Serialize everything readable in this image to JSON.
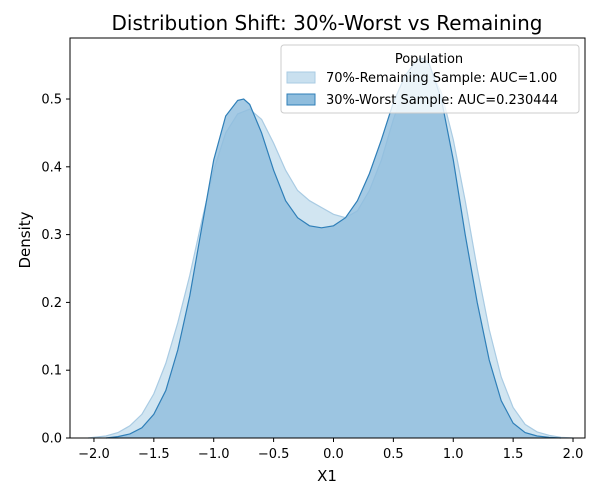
{
  "chart_data": {
    "type": "area",
    "title": "Distribution Shift: 30%-Worst vs Remaining",
    "xlabel": "X1",
    "ylabel": "Density",
    "xlim": [
      -2.2,
      2.1
    ],
    "ylim": [
      0,
      0.59
    ],
    "xticks": [
      -2.0,
      -1.5,
      -1.0,
      -0.5,
      0.0,
      0.5,
      1.0,
      1.5,
      2.0
    ],
    "xtick_labels": [
      "−2.0",
      "−1.5",
      "−1.0",
      "−0.5",
      "0.0",
      "0.5",
      "1.0",
      "1.5",
      "2.0"
    ],
    "yticks": [
      0.0,
      0.1,
      0.2,
      0.3,
      0.4,
      0.5
    ],
    "ytick_labels": [
      "0.0",
      "0.1",
      "0.2",
      "0.3",
      "0.4",
      "0.5"
    ],
    "grid": false,
    "legend": {
      "title": "Population",
      "placement": "top-right"
    },
    "series": [
      {
        "name": "70%-Remaining Sample: AUC=1.00",
        "fill": "#c9e0ef",
        "stroke": "#a9cbe3",
        "x": [
          -2.05,
          -1.9,
          -1.8,
          -1.7,
          -1.6,
          -1.5,
          -1.4,
          -1.3,
          -1.2,
          -1.1,
          -1.0,
          -0.9,
          -0.8,
          -0.7,
          -0.6,
          -0.5,
          -0.4,
          -0.3,
          -0.2,
          -0.1,
          0.0,
          0.1,
          0.2,
          0.3,
          0.4,
          0.5,
          0.6,
          0.7,
          0.8,
          0.9,
          1.0,
          1.1,
          1.2,
          1.3,
          1.4,
          1.5,
          1.6,
          1.7,
          1.8,
          1.9,
          2.0
        ],
        "y": [
          0.0,
          0.003,
          0.008,
          0.018,
          0.035,
          0.065,
          0.11,
          0.17,
          0.24,
          0.32,
          0.395,
          0.45,
          0.478,
          0.485,
          0.47,
          0.435,
          0.395,
          0.365,
          0.35,
          0.34,
          0.33,
          0.325,
          0.335,
          0.365,
          0.41,
          0.47,
          0.52,
          0.55,
          0.545,
          0.51,
          0.44,
          0.35,
          0.25,
          0.16,
          0.09,
          0.045,
          0.02,
          0.009,
          0.004,
          0.001,
          0.0
        ]
      },
      {
        "name": "30%-Worst Sample: AUC=0.230444",
        "fill": "#8fbddd",
        "stroke": "#2f7fb8",
        "x": [
          -1.9,
          -1.8,
          -1.7,
          -1.6,
          -1.5,
          -1.4,
          -1.3,
          -1.2,
          -1.1,
          -1.0,
          -0.9,
          -0.8,
          -0.75,
          -0.7,
          -0.6,
          -0.5,
          -0.4,
          -0.3,
          -0.2,
          -0.1,
          0.0,
          0.1,
          0.2,
          0.3,
          0.4,
          0.5,
          0.6,
          0.7,
          0.75,
          0.8,
          0.9,
          1.0,
          1.1,
          1.2,
          1.3,
          1.4,
          1.5,
          1.6,
          1.7,
          1.8,
          1.9
        ],
        "y": [
          0.0,
          0.002,
          0.006,
          0.015,
          0.035,
          0.07,
          0.13,
          0.21,
          0.31,
          0.41,
          0.475,
          0.498,
          0.5,
          0.492,
          0.45,
          0.395,
          0.35,
          0.325,
          0.313,
          0.31,
          0.313,
          0.325,
          0.35,
          0.39,
          0.44,
          0.495,
          0.535,
          0.558,
          0.56,
          0.552,
          0.5,
          0.41,
          0.3,
          0.2,
          0.115,
          0.055,
          0.022,
          0.008,
          0.003,
          0.001,
          0.0
        ]
      }
    ]
  }
}
